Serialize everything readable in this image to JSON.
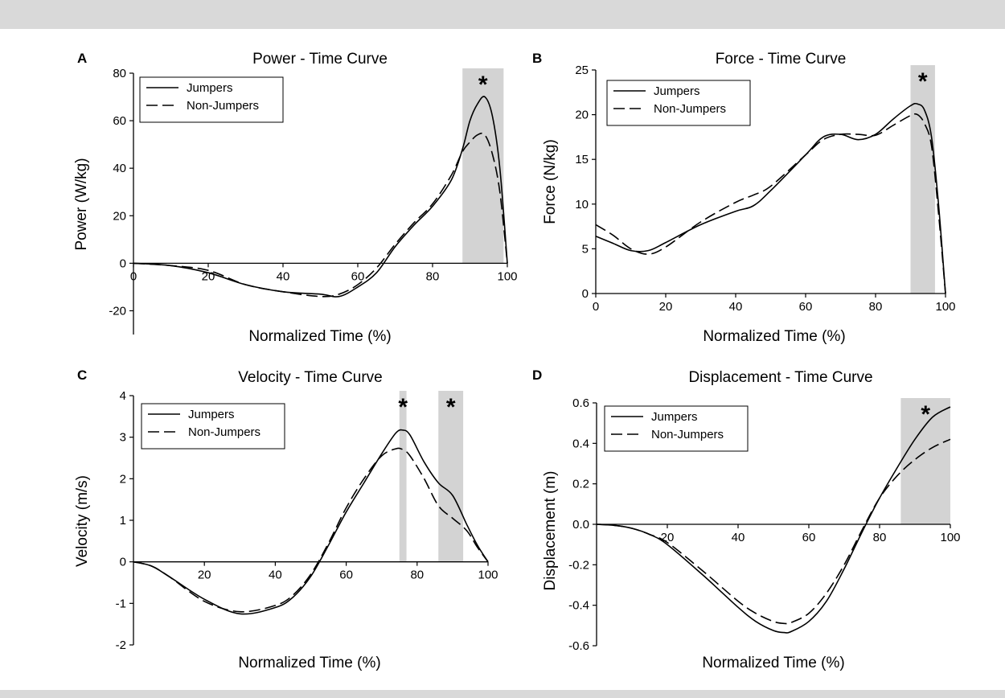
{
  "figure": {
    "background_band_color": "#d9d9d9",
    "shade_color": "#d3d3d3",
    "line_color": "#000000"
  },
  "chart_data": [
    {
      "type": "line",
      "panel": "A",
      "title": "Power - Time Curve",
      "xlabel": "Normalized Time (%)",
      "ylabel": "Power (W/kg)",
      "xlim": [
        0,
        100
      ],
      "ylim": [
        -30,
        80
      ],
      "xticks": [
        0,
        20,
        40,
        60,
        80,
        100
      ],
      "yticks": [
        -20,
        0,
        20,
        40,
        60,
        80
      ],
      "legend": "top-left",
      "grid": false,
      "significance": [
        {
          "x": [
            88,
            99
          ],
          "marker": "*"
        }
      ],
      "series": [
        {
          "name": "Jumpers",
          "style": "solid",
          "x": [
            0,
            10,
            20,
            30,
            40,
            50,
            55,
            60,
            65,
            70,
            75,
            80,
            85,
            88,
            90,
            92,
            94,
            96,
            98,
            100
          ],
          "y": [
            0,
            -1,
            -4,
            -9,
            -12,
            -13,
            -14,
            -10,
            -4,
            7,
            16,
            24,
            35,
            48,
            60,
            67,
            70,
            62,
            40,
            0
          ]
        },
        {
          "name": "Non-Jumpers",
          "style": "dashed",
          "x": [
            0,
            10,
            20,
            30,
            40,
            50,
            55,
            60,
            65,
            70,
            75,
            80,
            85,
            88,
            90,
            92,
            94,
            96,
            98,
            100
          ],
          "y": [
            0,
            -1,
            -3,
            -9,
            -12,
            -14,
            -13,
            -9,
            -2,
            8,
            17,
            25,
            37,
            47,
            51,
            54,
            54,
            46,
            30,
            0
          ]
        }
      ]
    },
    {
      "type": "line",
      "panel": "B",
      "title": "Force - Time Curve",
      "xlabel": "Normalized Time (%)",
      "ylabel": "Force (N/kg)",
      "xlim": [
        0,
        100
      ],
      "ylim": [
        0,
        25
      ],
      "xticks": [
        0,
        20,
        40,
        60,
        80,
        100
      ],
      "yticks": [
        0,
        5,
        10,
        15,
        20,
        25
      ],
      "legend": "top-left",
      "grid": false,
      "significance": [
        {
          "x": [
            90,
            97
          ],
          "marker": "*"
        }
      ],
      "series": [
        {
          "name": "Jumpers",
          "style": "solid",
          "x": [
            0,
            5,
            10,
            15,
            20,
            30,
            40,
            45,
            50,
            60,
            65,
            70,
            75,
            80,
            85,
            90,
            92,
            94,
            96,
            98,
            100
          ],
          "y": [
            6.4,
            5.6,
            4.8,
            4.8,
            5.7,
            7.7,
            9.2,
            9.8,
            11.5,
            15.5,
            17.5,
            17.8,
            17.2,
            17.8,
            19.5,
            21.0,
            21.2,
            20.5,
            17.5,
            10,
            0
          ]
        },
        {
          "name": "Non-Jumpers",
          "style": "dashed",
          "x": [
            0,
            5,
            10,
            15,
            20,
            30,
            40,
            45,
            50,
            60,
            65,
            70,
            75,
            80,
            85,
            90,
            92,
            94,
            96,
            98,
            100
          ],
          "y": [
            7.7,
            6.5,
            5.0,
            4.4,
            5.2,
            8.0,
            10.2,
            11.0,
            12.0,
            15.5,
            17.2,
            17.8,
            17.8,
            17.7,
            18.8,
            19.9,
            20.0,
            19.0,
            16.5,
            9,
            0
          ]
        }
      ]
    },
    {
      "type": "line",
      "panel": "C",
      "title": "Velocity - Time Curve",
      "xlabel": "Normalized Time (%)",
      "ylabel": "Velocity (m/s)",
      "xlim": [
        0,
        100
      ],
      "ylim": [
        -2,
        4
      ],
      "xticks": [
        20,
        40,
        60,
        80,
        100
      ],
      "yticks": [
        -2,
        -1,
        0,
        1,
        2,
        3,
        4
      ],
      "legend": "top-left",
      "grid": false,
      "significance": [
        {
          "x": [
            75,
            77
          ],
          "marker": "*"
        },
        {
          "x": [
            86,
            93
          ],
          "marker": "*"
        }
      ],
      "series": [
        {
          "name": "Jumpers",
          "style": "solid",
          "x": [
            0,
            5,
            10,
            20,
            30,
            40,
            45,
            50,
            55,
            60,
            65,
            70,
            74,
            76,
            78,
            82,
            86,
            90,
            94,
            97,
            100
          ],
          "y": [
            0,
            -0.1,
            -0.35,
            -0.9,
            -1.25,
            -1.1,
            -0.85,
            -0.35,
            0.4,
            1.2,
            1.9,
            2.6,
            3.1,
            3.17,
            3.05,
            2.4,
            1.9,
            1.6,
            0.9,
            0.4,
            0
          ]
        },
        {
          "name": "Non-Jumpers",
          "style": "dashed",
          "x": [
            0,
            5,
            10,
            20,
            30,
            40,
            45,
            50,
            55,
            60,
            65,
            70,
            74,
            76,
            78,
            82,
            86,
            90,
            94,
            97,
            100
          ],
          "y": [
            0,
            -0.1,
            -0.35,
            -0.95,
            -1.2,
            -1.05,
            -0.8,
            -0.3,
            0.45,
            1.3,
            2.0,
            2.55,
            2.72,
            2.7,
            2.55,
            2.0,
            1.35,
            1.05,
            0.75,
            0.35,
            0
          ]
        }
      ]
    },
    {
      "type": "line",
      "panel": "D",
      "title": "Displacement - Time Curve",
      "xlabel": "Normalized Time (%)",
      "ylabel": "Displacement (m)",
      "xlim": [
        0,
        100
      ],
      "ylim": [
        -0.6,
        0.6
      ],
      "xticks": [
        20,
        40,
        60,
        80,
        100
      ],
      "yticks": [
        -0.6,
        -0.4,
        -0.2,
        0.0,
        0.2,
        0.4,
        0.6
      ],
      "ytick_labels": [
        "-0.6",
        "-0.4",
        "-0.2",
        "0.0",
        "0.2",
        "0.4",
        "0.6"
      ],
      "legend": "top-left",
      "grid": false,
      "significance": [
        {
          "x": [
            86,
            100
          ],
          "marker": "*"
        }
      ],
      "series": [
        {
          "name": "Jumpers",
          "style": "solid",
          "x": [
            0,
            5,
            10,
            15,
            20,
            30,
            40,
            45,
            50,
            53,
            55,
            60,
            65,
            70,
            75,
            80,
            85,
            90,
            95,
            100
          ],
          "y": [
            0,
            -0.005,
            -0.02,
            -0.05,
            -0.1,
            -0.25,
            -0.41,
            -0.48,
            -0.525,
            -0.535,
            -0.53,
            -0.48,
            -0.38,
            -0.22,
            -0.04,
            0.13,
            0.28,
            0.42,
            0.53,
            0.58
          ]
        },
        {
          "name": "Non-Jumpers",
          "style": "dashed",
          "x": [
            0,
            5,
            10,
            15,
            20,
            30,
            40,
            45,
            50,
            53,
            55,
            60,
            65,
            70,
            75,
            80,
            85,
            90,
            95,
            100
          ],
          "y": [
            0,
            -0.005,
            -0.02,
            -0.05,
            -0.09,
            -0.23,
            -0.38,
            -0.44,
            -0.48,
            -0.49,
            -0.485,
            -0.44,
            -0.34,
            -0.2,
            -0.03,
            0.13,
            0.24,
            0.32,
            0.38,
            0.42
          ]
        }
      ]
    }
  ]
}
